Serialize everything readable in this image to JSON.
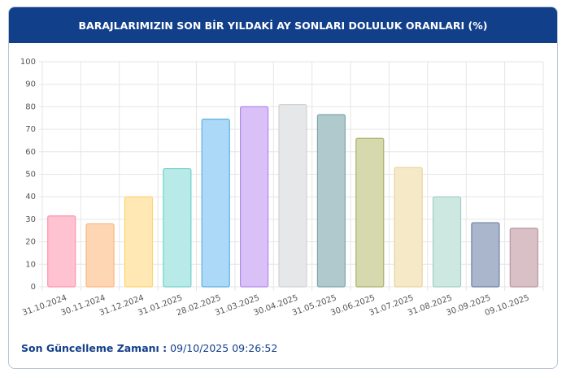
{
  "chart_data": {
    "type": "bar",
    "title": "BARAJLARIMIZIN SON BİR YILDAKİ AY SONLARI DOLULUK ORANLARI (%)",
    "categories": [
      "31.10.2024",
      "30.11.2024",
      "31.12.2024",
      "31.01.2025",
      "28.02.2025",
      "31.03.2025",
      "30.04.2025",
      "31.05.2025",
      "30.06.2025",
      "31.07.2025",
      "31.08.2025",
      "30.09.2025",
      "09.10.2025"
    ],
    "values": [
      31.5,
      28,
      40,
      52.5,
      74.5,
      80,
      81,
      76.5,
      66,
      53,
      40,
      28.5,
      26
    ],
    "colors": [
      "#ffc2d0",
      "#ffd6b3",
      "#ffe8b3",
      "#b8ebe8",
      "#acd9f7",
      "#d9c1f8",
      "#e6e7e8",
      "#afc9cd",
      "#d6d9ad",
      "#f6e9c8",
      "#cde8e0",
      "#aab6cb",
      "#d9c0c7"
    ],
    "border_colors": [
      "#ff94ab",
      "#ffb47d",
      "#ffd36e",
      "#72d0cb",
      "#5cb1e6",
      "#b08aec",
      "#cfd1d3",
      "#80a6ac",
      "#a9b06b",
      "#e7d39e",
      "#a0d0c3",
      "#6c80a3",
      "#b8959f"
    ],
    "ylim": [
      0,
      100
    ],
    "yticks": [
      0,
      10,
      20,
      30,
      40,
      50,
      60,
      70,
      80,
      90,
      100
    ],
    "grid": true
  },
  "footer": {
    "label": "Son Güncelleme Zamanı :",
    "value": "09/10/2025 09:26:52"
  }
}
